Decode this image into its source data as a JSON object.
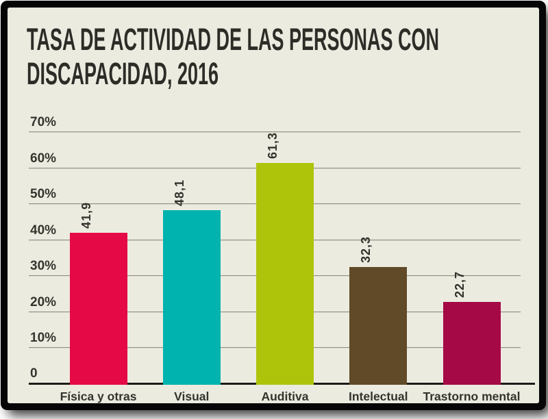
{
  "header": {
    "title": "TASA DE ACTIVIDAD DE LAS PERSONAS CON DISCAPACIDAD, 2016",
    "lines": [
      "TASA DE ACTIVIDAD DE LAS PERSONAS CON",
      "DISCAPACIDAD, 2016"
    ]
  },
  "chart_data": {
    "type": "bar",
    "title": "TASA DE ACTIVIDAD DE LAS PERSONAS CON DISCAPACIDAD, 2016",
    "categories": [
      "Física y otras",
      "Visual",
      "Auditiva",
      "Intelectual",
      "Trastorno mental"
    ],
    "values": [
      41.9,
      48.1,
      61.3,
      32.3,
      22.7
    ],
    "value_labels": [
      "41,9",
      "48,1",
      "61,3",
      "32,3",
      "22,7"
    ],
    "bar_colors": [
      "#e50a45",
      "#00b3ae",
      "#aec40b",
      "#604a28",
      "#a50946"
    ],
    "xlabel": "",
    "ylabel": "",
    "ylim": [
      0,
      70
    ],
    "yticks": [
      {
        "value": 70,
        "label": "70%"
      },
      {
        "value": 60,
        "label": "60%"
      },
      {
        "value": 50,
        "label": "50%"
      },
      {
        "value": 40,
        "label": "40%"
      },
      {
        "value": 30,
        "label": "30%"
      },
      {
        "value": 20,
        "label": "20%"
      },
      {
        "value": 10,
        "label": "10%"
      },
      {
        "value": 0,
        "label": "0"
      }
    ],
    "grid": true,
    "legend_position": "none",
    "background": "#ecebe0",
    "value_label_decimal_separator": ","
  },
  "colors": {
    "page_bg": "#ffffff",
    "frame": "#060606",
    "poster_bg": "#ecebe0",
    "title_text": "#2d2c27",
    "axis_text": "#35342e",
    "gridline": "#8f8f85",
    "axis_line": "#1c1c19"
  }
}
